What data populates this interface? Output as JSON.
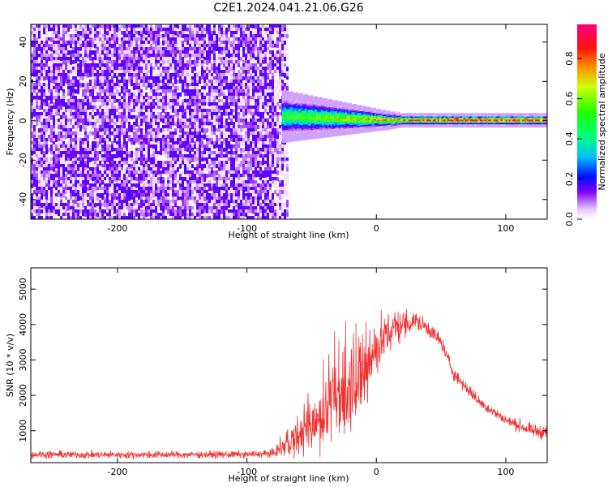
{
  "title": "C2E1.2024.041.21.06.G26",
  "chart_data": [
    {
      "type": "heatmap",
      "xlabel": "Height of straight line (km)",
      "ylabel": "Frequency (Hz)",
      "xlim": [
        -267,
        132
      ],
      "ylim": [
        -50,
        49
      ],
      "xticks": [
        -200,
        -100,
        0,
        100
      ],
      "yticks": [
        -40,
        -20,
        0,
        20,
        40
      ],
      "colorbar": {
        "label": "Normalized spectral amplitude",
        "range": [
          0,
          0.97
        ],
        "ticks": [
          0.0,
          0.2,
          0.4,
          0.6,
          0.8
        ],
        "tick_labels": [
          "0.0",
          "0.2",
          "0.4",
          "0.6",
          "0.8"
        ]
      },
      "regions": [
        {
          "description_x": [
            -267,
            -73
          ],
          "frequency_band": [
            -50,
            49
          ],
          "amplitude": [
            0.02,
            0.15
          ],
          "pattern": "speckled noise"
        },
        {
          "description_x": [
            -73,
            132
          ],
          "frequency_center": [
            2,
            0
          ],
          "frequency_halfwidth": [
            6,
            1.5
          ],
          "amplitude_peak": [
            0.5,
            0.95
          ],
          "pattern": "narrow carrier line"
        }
      ]
    },
    {
      "type": "line",
      "xlabel": "Height of straight line (km)",
      "ylabel": "SNR (10 * v/v)",
      "xlim": [
        -267,
        132
      ],
      "ylim": [
        100,
        5600
      ],
      "xticks": [
        -200,
        -100,
        0,
        100
      ],
      "yticks": [
        1000,
        2000,
        3000,
        4000,
        5000
      ],
      "series": [
        {
          "color": "#f03232",
          "envelope_x": [
            -267,
            -200,
            -100,
            -80,
            -65,
            -50,
            -40,
            -30,
            -20,
            -10,
            0,
            10,
            20,
            30,
            40,
            50,
            60,
            70,
            80,
            100,
            120,
            132
          ],
          "envelope_mean": [
            330,
            320,
            330,
            360,
            700,
            1100,
            1400,
            1800,
            2300,
            2600,
            3300,
            3800,
            4000,
            4100,
            3900,
            3500,
            2600,
            2200,
            1800,
            1300,
            1000,
            950
          ],
          "envelope_noise": [
            120,
            110,
            110,
            120,
            500,
            800,
            1100,
            1500,
            1500,
            1200,
            800,
            700,
            500,
            300,
            250,
            250,
            200,
            200,
            180,
            150,
            200,
            220
          ]
        }
      ]
    }
  ]
}
